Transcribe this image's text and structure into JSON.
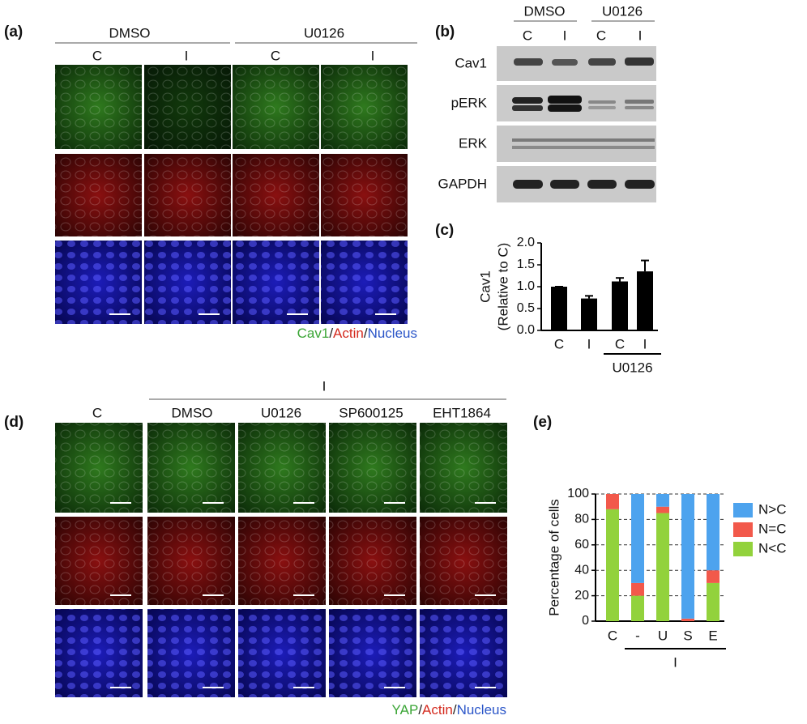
{
  "panel_a": {
    "label": "(a)",
    "groups": [
      "DMSO",
      "U0126"
    ],
    "columns": [
      "C",
      "I",
      "C",
      "I"
    ],
    "legend": [
      {
        "text": "Cav1",
        "color": "#3aa535"
      },
      {
        "text": "/",
        "color": "#222222"
      },
      {
        "text": "Actin",
        "color": "#d42a1e"
      },
      {
        "text": "/",
        "color": "#222222"
      },
      {
        "text": "Nucleus",
        "color": "#2a55c8"
      }
    ]
  },
  "panel_b": {
    "label": "(b)",
    "groups": [
      "DMSO",
      "U0126"
    ],
    "columns": [
      "C",
      "I",
      "C",
      "I"
    ],
    "rows": [
      "Cav1",
      "pERK",
      "ERK",
      "GAPDH"
    ]
  },
  "panel_d": {
    "label": "(d)",
    "group": "I",
    "columns": [
      "C",
      "DMSO",
      "U0126",
      "SP600125",
      "EHT1864"
    ],
    "legend": [
      {
        "text": "YAP",
        "color": "#3aa535"
      },
      {
        "text": "/",
        "color": "#222222"
      },
      {
        "text": "Actin",
        "color": "#d42a1e"
      },
      {
        "text": "/",
        "color": "#222222"
      },
      {
        "text": "Nucleus",
        "color": "#2a55c8"
      }
    ]
  },
  "chart_data": [
    {
      "type": "bar",
      "label": "(c)",
      "ylabel": [
        "Cav1",
        "(Relative to C)"
      ],
      "categories": [
        "C",
        "I",
        "C",
        "I"
      ],
      "values": [
        1.0,
        0.73,
        1.12,
        1.35
      ],
      "errors": [
        0,
        0.06,
        0.08,
        0.25
      ],
      "group": {
        "label": "U0126",
        "categories": [
          2,
          3
        ]
      },
      "color": "#000000",
      "ylim": [
        0,
        2
      ],
      "yticks": [
        {
          "value": 0,
          "label": "0.0"
        },
        {
          "value": 0.5,
          "label": "0.5"
        },
        {
          "value": 1,
          "label": "1.0"
        },
        {
          "value": 1.5,
          "label": "1.5"
        },
        {
          "value": 2,
          "label": "2.0"
        }
      ]
    },
    {
      "type": "stacked_bar",
      "label": "(e)",
      "ylabel": "Percentage of cells",
      "categories": [
        "C",
        "-",
        "U",
        "S",
        "E"
      ],
      "group": {
        "label": "I",
        "categories": [
          1,
          4
        ]
      },
      "series": [
        {
          "name": "N>C",
          "color": "#4da3ee",
          "values": [
            0,
            70,
            10,
            98,
            60
          ]
        },
        {
          "name": "N=C",
          "color": "#f2594b",
          "values": [
            12,
            10,
            5,
            2,
            10
          ]
        },
        {
          "name": "N<C",
          "color": "#92d23c",
          "values": [
            88,
            20,
            85,
            0,
            30
          ]
        }
      ],
      "ylim": [
        0,
        100
      ],
      "yticks": [
        0,
        20,
        40,
        60,
        80,
        100
      ],
      "grid": true
    }
  ]
}
